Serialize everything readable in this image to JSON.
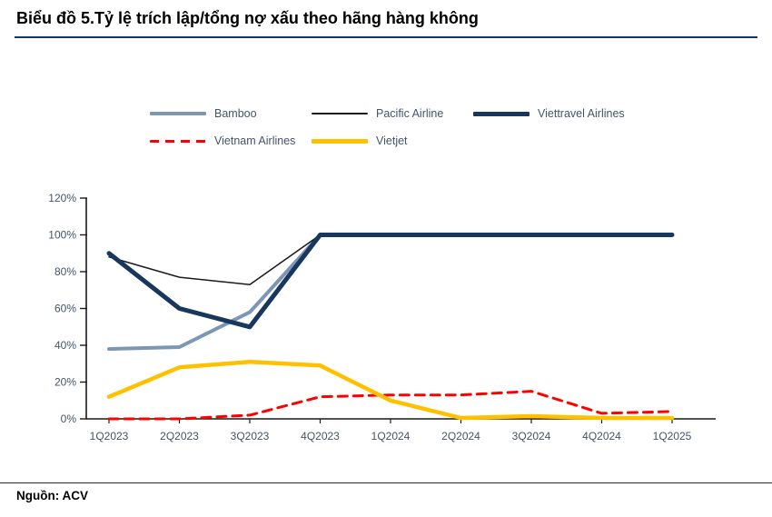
{
  "title": "Biểu đồ 5.Tỷ lệ trích lập/tổng nợ xấu theo hãng hàng không",
  "source": "Nguồn: ACV",
  "colors": {
    "title_rule": "#17375E",
    "axis_line": "#1A1A1A",
    "axis_label": "#44546A",
    "source_rule": "#262626"
  },
  "chart_data": {
    "type": "line",
    "title": "Biểu đồ 5.Tỷ lệ trích lập/tổng nợ xấu theo hãng hàng không",
    "xlabel": "",
    "ylabel": "",
    "ylim": [
      0,
      120
    ],
    "ytick_step": 20,
    "ytick_labels": [
      "0%",
      "20%",
      "40%",
      "60%",
      "80%",
      "100%",
      "120%"
    ],
    "grid": false,
    "legend_position": "top",
    "legend_rows": [
      3,
      2
    ],
    "categories": [
      "1Q2023",
      "2Q2023",
      "3Q2023",
      "4Q2023",
      "1Q2024",
      "2Q2024",
      "3Q2024",
      "4Q2024",
      "1Q2025"
    ],
    "series": [
      {
        "name": "Bamboo",
        "color": "#7C96B8",
        "width": 4,
        "dash": "solid",
        "values": [
          38,
          39,
          58,
          100,
          100,
          100,
          100,
          100,
          100
        ]
      },
      {
        "name": "Pacific Airline",
        "color": "#1A1A1A",
        "width": 1.5,
        "dash": "solid",
        "values": [
          88,
          77,
          73,
          100,
          100,
          100,
          100,
          100,
          100
        ]
      },
      {
        "name": "Viettravel Airlines",
        "color": "#17375E",
        "width": 5,
        "dash": "solid",
        "values": [
          90,
          60,
          50,
          100,
          100,
          100,
          100,
          100,
          100
        ]
      },
      {
        "name": "Vietnam Airlines",
        "color": "#FF0000",
        "width": 3,
        "dash": "dashed",
        "values": [
          0,
          0,
          2,
          12,
          13,
          13,
          15,
          3,
          4
        ]
      },
      {
        "name": "Vietjet",
        "color": "#FFC000",
        "width": 4.5,
        "dash": "solid",
        "values": [
          12,
          28,
          31,
          29,
          10,
          0.5,
          1.5,
          0.5,
          0.5
        ]
      }
    ]
  }
}
